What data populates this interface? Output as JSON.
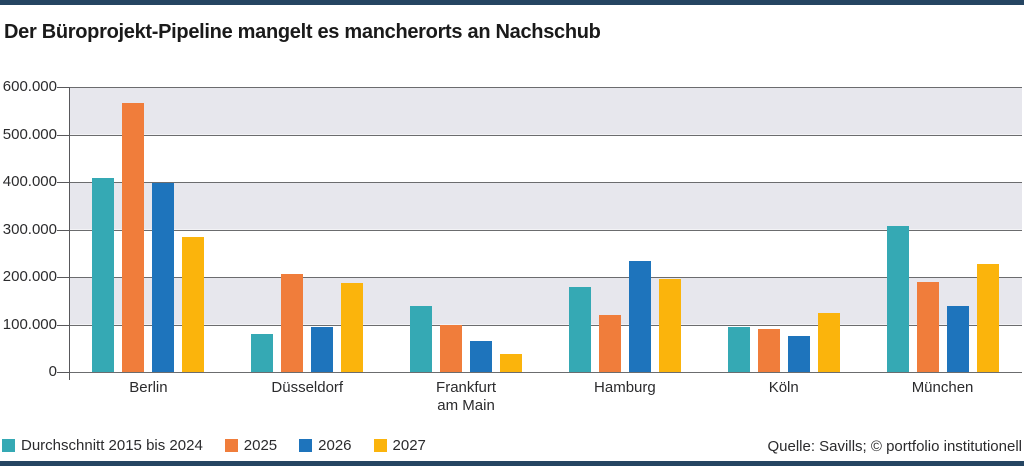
{
  "title": "Der Büroprojekt-Pipeline mangelt es mancherorts an Nachschub",
  "source": "Quelle: Savills; © portfolio institutionell",
  "colors": {
    "frame_border": "#254562",
    "band": "#e7e7ed",
    "gridline": "#6b6c6e",
    "axis": "#58585b",
    "text": "#2b2b2d",
    "series_teal": "#35a9b4",
    "series_orange": "#f07d3b",
    "series_blue": "#1e74bc",
    "series_yellow": "#fbb40c"
  },
  "chart_data": {
    "type": "bar",
    "categories": [
      "Berlin",
      "Düsseldorf",
      "Frankfurt am Main",
      "Hamburg",
      "Köln",
      "München"
    ],
    "series": [
      {
        "name": "Durchschnitt 2015 bis 2024",
        "color": "#35a9b4",
        "values": [
          408000,
          80000,
          138000,
          180000,
          95000,
          308000
        ]
      },
      {
        "name": "2025",
        "color": "#f07d3b",
        "values": [
          567000,
          207000,
          100000,
          120000,
          90000,
          190000
        ]
      },
      {
        "name": "2026",
        "color": "#1e74bc",
        "values": [
          397000,
          95000,
          65000,
          233000,
          75000,
          140000
        ]
      },
      {
        "name": "2027",
        "color": "#fbb40c",
        "values": [
          285000,
          188000,
          38000,
          196000,
          125000,
          228000
        ]
      }
    ],
    "ylim": [
      0,
      600000
    ],
    "y_ticks": [
      {
        "value": 600000,
        "label": "600.000"
      },
      {
        "value": 500000,
        "label": "500.000"
      },
      {
        "value": 400000,
        "label": "400.000"
      },
      {
        "value": 300000,
        "label": "300.000"
      },
      {
        "value": 200000,
        "label": "200.000"
      },
      {
        "value": 100000,
        "label": "100.000"
      },
      {
        "value": 0,
        "label": "0"
      }
    ],
    "grid": "horizontal-bands-alternating",
    "legend_position": "bottom-left"
  }
}
